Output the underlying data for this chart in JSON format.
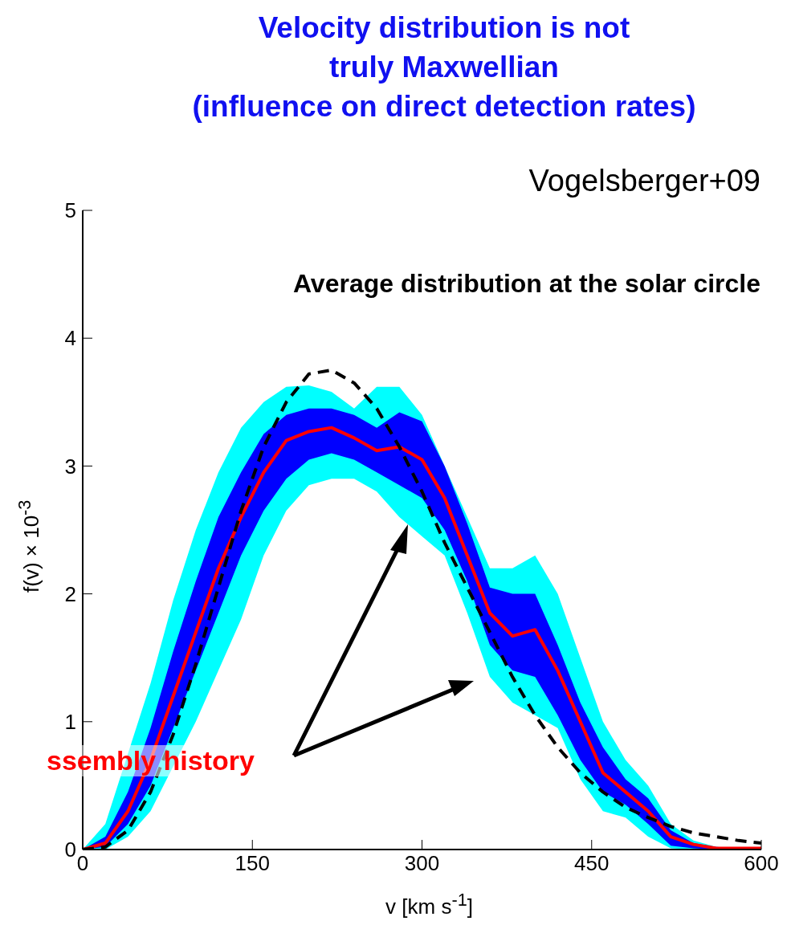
{
  "chart_data": {
    "type": "line",
    "title": "Velocity distribution is not\ntruly Maxwellian\n(influence on direct detection rates)",
    "subtitle": "Average distribution at the solar circle",
    "xlabel": "v [km s$^{-1}$]",
    "ylabel": "f(v) × 10$^{-3}$",
    "annotations": [
      "Vogelsberger+09",
      "ssembly history"
    ],
    "x": [
      0,
      20,
      40,
      60,
      80,
      100,
      120,
      140,
      160,
      180,
      200,
      220,
      240,
      260,
      280,
      300,
      320,
      340,
      360,
      380,
      400,
      420,
      440,
      460,
      480,
      500,
      520,
      540,
      560,
      580,
      600
    ],
    "series": [
      {
        "color": "#00ffff",
        "values": [
          null,
          null,
          null,
          null,
          null,
          null,
          null,
          null,
          null,
          null,
          null,
          null,
          null,
          null,
          null,
          null,
          null,
          null,
          null,
          null,
          null,
          null,
          null,
          null,
          null,
          null,
          null,
          null,
          null,
          null,
          null
        ],
        "lower": [
          0,
          0,
          0.1,
          0.3,
          0.65,
          1.0,
          1.4,
          1.8,
          2.3,
          2.65,
          2.85,
          2.9,
          2.9,
          2.8,
          2.6,
          2.45,
          2.3,
          1.85,
          1.35,
          1.15,
          1.05,
          0.95,
          0.55,
          0.3,
          0.25,
          0.1,
          0.01,
          0,
          0,
          0,
          0
        ],
        "upper": [
          0,
          0.2,
          0.75,
          1.3,
          1.95,
          2.5,
          2.95,
          3.3,
          3.5,
          3.62,
          3.63,
          3.58,
          3.45,
          3.62,
          3.62,
          3.4,
          3.0,
          2.6,
          2.2,
          2.2,
          2.3,
          2.0,
          1.5,
          1.0,
          0.7,
          0.5,
          0.2,
          0.07,
          0.02,
          0.01,
          0.01
        ]
      },
      {
        "color": "#0000ff",
        "values": [
          null,
          null,
          null,
          null,
          null,
          null,
          null,
          null,
          null,
          null,
          null,
          null,
          null,
          null,
          null,
          null,
          null,
          null,
          null,
          null,
          null,
          null,
          null,
          null,
          null,
          null,
          null,
          null,
          null,
          null,
          null
        ],
        "lower": [
          0,
          0.02,
          0.2,
          0.5,
          0.95,
          1.4,
          1.85,
          2.3,
          2.65,
          2.9,
          3.05,
          3.1,
          3.05,
          2.95,
          2.85,
          2.75,
          2.5,
          2.1,
          1.6,
          1.4,
          1.35,
          1.05,
          0.7,
          0.45,
          0.35,
          0.2,
          0.03,
          0.01,
          0,
          0,
          0
        ],
        "upper": [
          0,
          0.1,
          0.45,
          0.95,
          1.55,
          2.1,
          2.6,
          2.95,
          3.25,
          3.4,
          3.45,
          3.45,
          3.4,
          3.3,
          3.42,
          3.35,
          3.0,
          2.55,
          2.05,
          2.0,
          2.0,
          1.6,
          1.15,
          0.8,
          0.55,
          0.4,
          0.15,
          0.05,
          0.02,
          0.01,
          0.01
        ]
      },
      {
        "type": "line",
        "color": "#ff0000",
        "values": [
          0,
          0.05,
          0.3,
          0.7,
          1.2,
          1.7,
          2.2,
          2.6,
          2.95,
          3.2,
          3.27,
          3.3,
          3.22,
          3.12,
          3.15,
          3.05,
          2.75,
          2.3,
          1.85,
          1.67,
          1.72,
          1.4,
          1.0,
          0.6,
          0.45,
          0.3,
          0.1,
          0.04,
          0.01,
          0.01,
          0.01
        ]
      },
      {
        "type": "line",
        "color": "#000000",
        "line_style": "dashed",
        "values": [
          0,
          0.02,
          0.15,
          0.45,
          0.9,
          1.45,
          2.05,
          2.65,
          3.15,
          3.5,
          3.72,
          3.75,
          3.65,
          3.45,
          3.15,
          2.8,
          2.4,
          2.05,
          1.7,
          1.35,
          1.05,
          0.8,
          0.6,
          0.45,
          0.33,
          0.25,
          0.18,
          0.13,
          0.1,
          0.07,
          0.05
        ]
      }
    ],
    "xlim": [
      0,
      600
    ],
    "xticks": [
      0,
      150,
      300,
      450,
      600
    ],
    "ylim": [
      0,
      5
    ],
    "yticks": [
      0,
      1,
      2,
      3,
      4,
      5
    ],
    "grid": false,
    "legend": false,
    "marker": "none"
  }
}
